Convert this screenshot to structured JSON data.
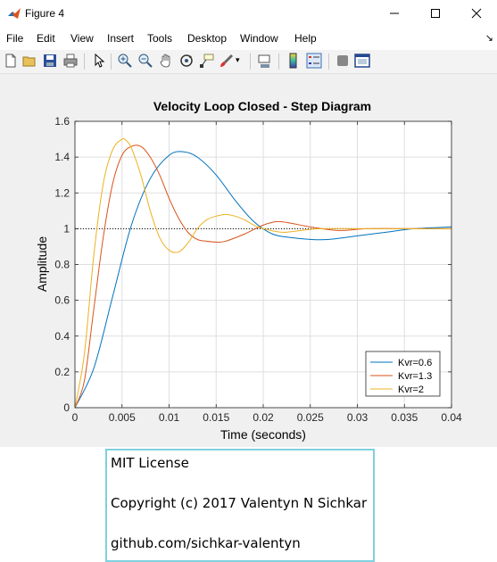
{
  "window": {
    "title": "Figure 4",
    "icon": "matlab-icon"
  },
  "menu": [
    "File",
    "Edit",
    "View",
    "Insert",
    "Tools",
    "Desktop",
    "Window",
    "Help"
  ],
  "toolbar": [
    "new-figure-icon",
    "open-file-icon",
    "save-icon",
    "print-icon",
    "edit-plot-arrow-icon",
    "zoom-in-icon",
    "zoom-out-icon",
    "pan-icon",
    "rotate-3d-icon",
    "data-cursor-icon",
    "brush-icon",
    "link-plot-icon",
    "colorbar-icon",
    "legend-icon",
    "hide-plot-tools-icon",
    "show-plot-tools-icon"
  ],
  "chart_data": {
    "type": "line",
    "title": "Velocity Loop Closed - Step Diagram",
    "xlabel": "Time (seconds)",
    "ylabel": "Amplitude",
    "xlim": [
      0,
      0.04
    ],
    "ylim": [
      0,
      1.6
    ],
    "xticks": [
      "0",
      "0.005",
      "0.01",
      "0.015",
      "0.02",
      "0.025",
      "0.03",
      "0.035",
      "0.04"
    ],
    "yticks": [
      "0",
      "0.2",
      "0.4",
      "0.6",
      "0.8",
      "1",
      "1.2",
      "1.4",
      "1.6"
    ],
    "grid": true,
    "reference_line": {
      "y": 1,
      "style": "dotted"
    },
    "legend_position": "bottom-right",
    "series": [
      {
        "name": "Kvr=0.6",
        "color": "#0072BD",
        "x": [
          0,
          0.002,
          0.004,
          0.006,
          0.008,
          0.01,
          0.0115,
          0.013,
          0.015,
          0.017,
          0.019,
          0.021,
          0.023,
          0.025,
          0.027,
          0.03,
          0.033,
          0.036,
          0.04
        ],
        "y": [
          0,
          0.22,
          0.62,
          1.02,
          1.28,
          1.41,
          1.43,
          1.4,
          1.3,
          1.16,
          1.04,
          0.97,
          0.95,
          0.94,
          0.94,
          0.96,
          0.98,
          1.0,
          1.01
        ]
      },
      {
        "name": "Kvr=1.3",
        "color": "#D95319",
        "x": [
          0,
          0.001,
          0.002,
          0.003,
          0.004,
          0.005,
          0.006,
          0.007,
          0.008,
          0.009,
          0.01,
          0.011,
          0.012,
          0.013,
          0.014,
          0.015,
          0.016,
          0.018,
          0.02,
          0.0215,
          0.023,
          0.025,
          0.028,
          0.031,
          0.035,
          0.04
        ],
        "y": [
          0,
          0.15,
          0.55,
          0.95,
          1.25,
          1.41,
          1.46,
          1.46,
          1.4,
          1.3,
          1.17,
          1.06,
          0.98,
          0.94,
          0.93,
          0.925,
          0.93,
          0.97,
          1.02,
          1.04,
          1.03,
          1.01,
          0.99,
          1.0,
          1.0,
          1.0
        ]
      },
      {
        "name": "Kvr=2",
        "color": "#EDB120",
        "x": [
          0,
          0.001,
          0.002,
          0.003,
          0.004,
          0.005,
          0.0055,
          0.006,
          0.007,
          0.008,
          0.009,
          0.01,
          0.011,
          0.012,
          0.013,
          0.014,
          0.015,
          0.016,
          0.017,
          0.018,
          0.019,
          0.02,
          0.022,
          0.024,
          0.026,
          0.03,
          0.035,
          0.04
        ],
        "y": [
          0,
          0.3,
          0.85,
          1.25,
          1.44,
          1.5,
          1.49,
          1.45,
          1.3,
          1.1,
          0.95,
          0.88,
          0.87,
          0.92,
          1.0,
          1.05,
          1.07,
          1.08,
          1.07,
          1.05,
          1.02,
          1.0,
          0.98,
          0.99,
          1.0,
          1.0,
          1.0,
          1.0
        ]
      }
    ]
  },
  "license": {
    "line1": "MIT License",
    "line2": "Copyright (c) 2017 Valentyn N Sichkar",
    "line3": "github.com/sichkar-valentyn"
  }
}
